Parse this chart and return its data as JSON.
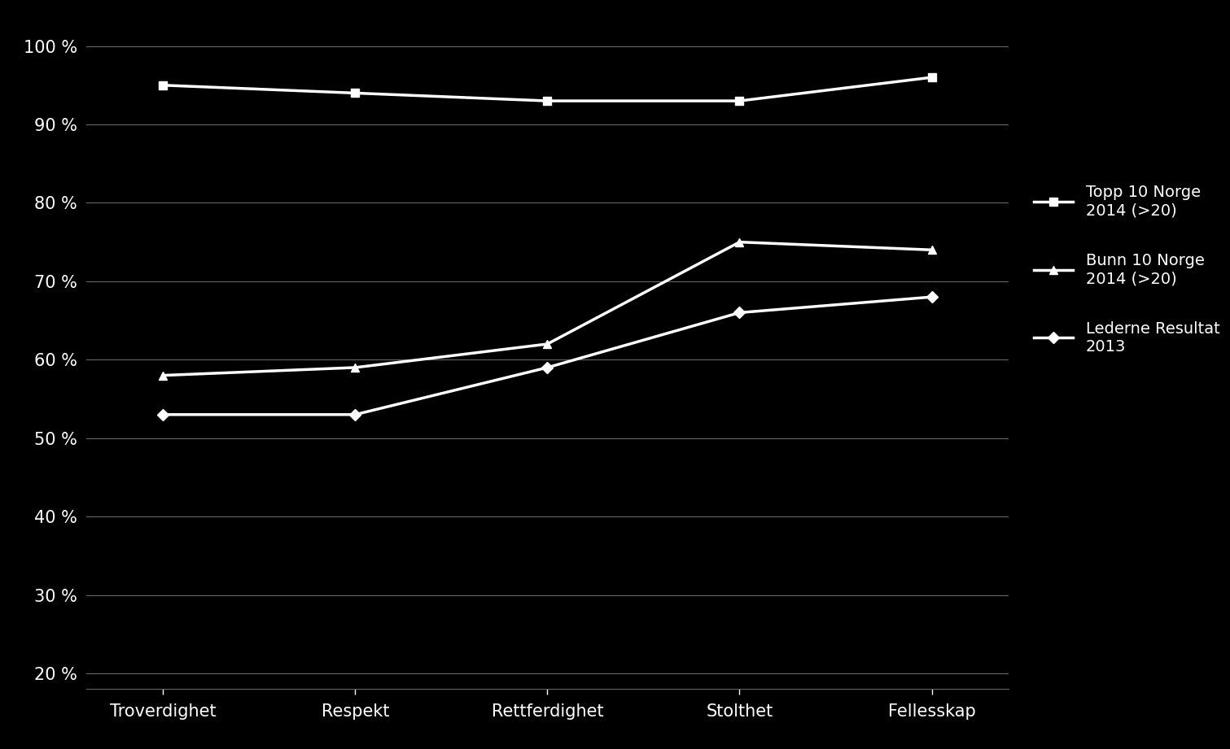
{
  "categories": [
    "Troverdighet",
    "Respekt",
    "Rettferdighet",
    "Stolthet",
    "Fellesskap"
  ],
  "series": [
    {
      "label": "Topp 10 Norge\n2014 (>20)",
      "values": [
        95,
        94,
        93,
        93,
        96
      ],
      "color": "#ffffff",
      "marker": "s",
      "linewidth": 2.5,
      "markersize": 7
    },
    {
      "label": "Bunn 10 Norge\n2014 (>20)",
      "values": [
        58,
        59,
        62,
        75,
        74
      ],
      "color": "#ffffff",
      "marker": "^",
      "linewidth": 2.5,
      "markersize": 7
    },
    {
      "label": "Lederne Resultat\n2013",
      "values": [
        53,
        53,
        59,
        66,
        68
      ],
      "color": "#ffffff",
      "marker": "D",
      "linewidth": 2.5,
      "markersize": 7
    }
  ],
  "ylim": [
    18,
    103
  ],
  "yticks": [
    20,
    30,
    40,
    50,
    60,
    70,
    80,
    90,
    100
  ],
  "ytick_labels": [
    "20 %",
    "30 %",
    "40 %",
    "50 %",
    "60 %",
    "70 %",
    "80 %",
    "90 %",
    "100 %"
  ],
  "background_color": "#000000",
  "text_color": "#ffffff",
  "grid_color": "#666666",
  "legend_fontsize": 14,
  "tick_fontsize": 15,
  "xtick_fontsize": 15
}
